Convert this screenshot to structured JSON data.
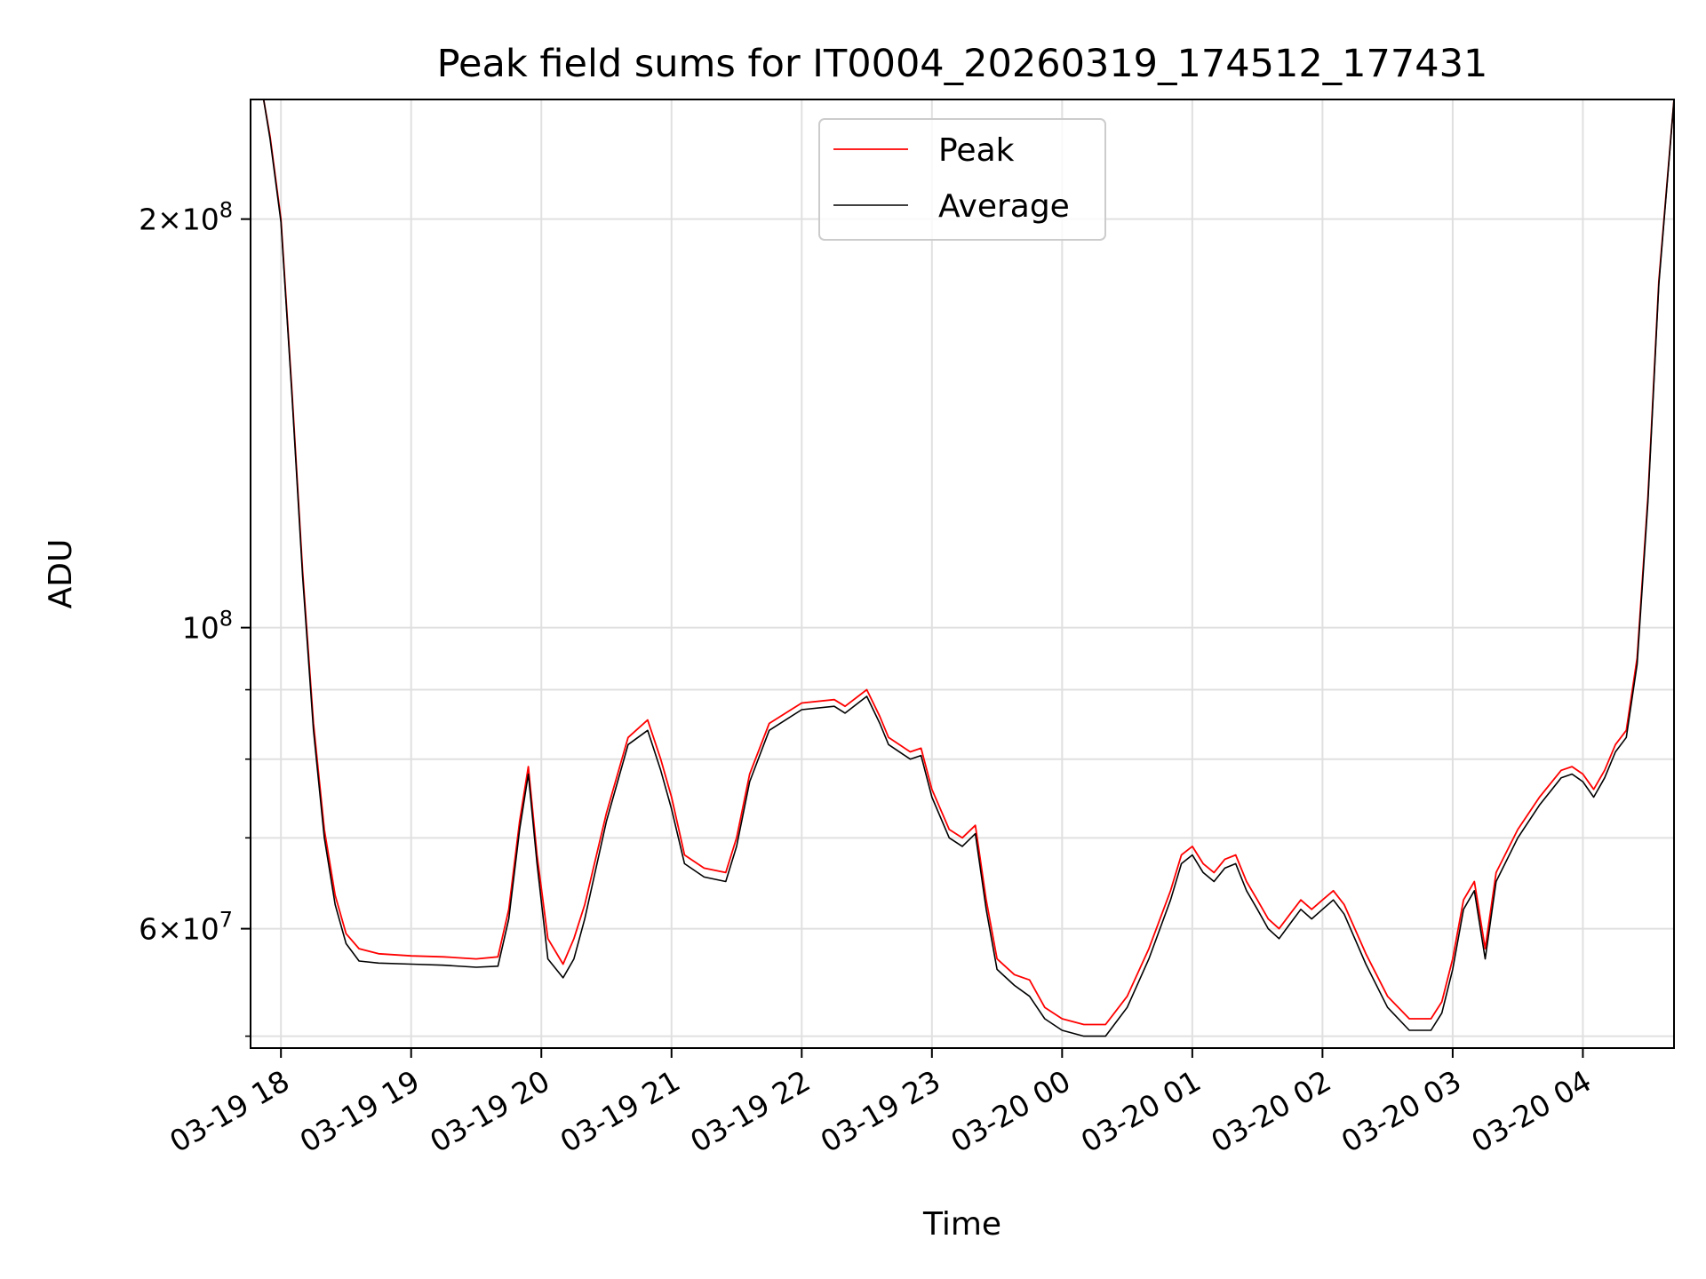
{
  "chart_data": {
    "type": "line",
    "title": "Peak field sums for IT0004_20260319_174512_177431",
    "xlabel": "Time",
    "ylabel": "ADU",
    "yscale": "log",
    "ylim": [
      49000000,
      245000000
    ],
    "xlim": [
      "2026-03-19 17:46",
      "2026-03-20 04:42"
    ],
    "grid": true,
    "legend_position": "upper center",
    "x_ticks": [
      {
        "value": "2026-03-19 18:00",
        "label": "03-19 18"
      },
      {
        "value": "2026-03-19 19:00",
        "label": "03-19 19"
      },
      {
        "value": "2026-03-19 20:00",
        "label": "03-19 20"
      },
      {
        "value": "2026-03-19 21:00",
        "label": "03-19 21"
      },
      {
        "value": "2026-03-19 22:00",
        "label": "03-19 22"
      },
      {
        "value": "2026-03-19 23:00",
        "label": "03-19 23"
      },
      {
        "value": "2026-03-20 00:00",
        "label": "03-20 00"
      },
      {
        "value": "2026-03-20 01:00",
        "label": "03-20 01"
      },
      {
        "value": "2026-03-20 02:00",
        "label": "03-20 02"
      },
      {
        "value": "2026-03-20 03:00",
        "label": "03-20 03"
      },
      {
        "value": "2026-03-20 04:00",
        "label": "03-20 04"
      }
    ],
    "y_ticks_major": [
      {
        "value": 200000000,
        "base": "2×10",
        "exp": "8"
      },
      {
        "value": 100000000,
        "base": "10",
        "exp": "8"
      },
      {
        "value": 60000000,
        "base": "6×10",
        "exp": "7"
      }
    ],
    "y_ticks_minor": [
      50000000,
      70000000,
      80000000,
      90000000
    ],
    "series": [
      {
        "name": "Peak",
        "color": "#ff0000",
        "x": [
          "2026-03-19 17:46",
          "2026-03-19 17:52",
          "2026-03-19 17:55",
          "2026-03-19 18:00",
          "2026-03-19 18:05",
          "2026-03-19 18:10",
          "2026-03-19 18:15",
          "2026-03-19 18:20",
          "2026-03-19 18:25",
          "2026-03-19 18:30",
          "2026-03-19 18:36",
          "2026-03-19 18:45",
          "2026-03-19 19:00",
          "2026-03-19 19:15",
          "2026-03-19 19:30",
          "2026-03-19 19:40",
          "2026-03-19 19:45",
          "2026-03-19 19:50",
          "2026-03-19 19:54",
          "2026-03-19 19:58",
          "2026-03-19 20:03",
          "2026-03-19 20:10",
          "2026-03-19 20:15",
          "2026-03-19 20:20",
          "2026-03-19 20:30",
          "2026-03-19 20:40",
          "2026-03-19 20:49",
          "2026-03-19 20:55",
          "2026-03-19 21:00",
          "2026-03-19 21:06",
          "2026-03-19 21:15",
          "2026-03-19 21:25",
          "2026-03-19 21:30",
          "2026-03-19 21:36",
          "2026-03-19 21:45",
          "2026-03-19 22:00",
          "2026-03-19 22:15",
          "2026-03-19 22:20",
          "2026-03-19 22:30",
          "2026-03-19 22:36",
          "2026-03-19 22:40",
          "2026-03-19 22:50",
          "2026-03-19 22:55",
          "2026-03-19 23:00",
          "2026-03-19 23:08",
          "2026-03-19 23:14",
          "2026-03-19 23:20",
          "2026-03-19 23:25",
          "2026-03-19 23:30",
          "2026-03-19 23:38",
          "2026-03-19 23:45",
          "2026-03-19 23:52",
          "2026-03-20 00:00",
          "2026-03-20 00:10",
          "2026-03-20 00:20",
          "2026-03-20 00:30",
          "2026-03-20 00:40",
          "2026-03-20 00:50",
          "2026-03-20 00:55",
          "2026-03-20 01:00",
          "2026-03-20 01:05",
          "2026-03-20 01:10",
          "2026-03-20 01:15",
          "2026-03-20 01:20",
          "2026-03-20 01:25",
          "2026-03-20 01:30",
          "2026-03-20 01:35",
          "2026-03-20 01:40",
          "2026-03-20 01:45",
          "2026-03-20 01:50",
          "2026-03-20 01:55",
          "2026-03-20 02:00",
          "2026-03-20 02:05",
          "2026-03-20 02:10",
          "2026-03-20 02:20",
          "2026-03-20 02:30",
          "2026-03-20 02:40",
          "2026-03-20 02:50",
          "2026-03-20 02:55",
          "2026-03-20 03:00",
          "2026-03-20 03:05",
          "2026-03-20 03:10",
          "2026-03-20 03:15",
          "2026-03-20 03:20",
          "2026-03-20 03:30",
          "2026-03-20 03:40",
          "2026-03-20 03:50",
          "2026-03-20 03:55",
          "2026-03-20 04:00",
          "2026-03-20 04:05",
          "2026-03-20 04:10",
          "2026-03-20 04:15",
          "2026-03-20 04:20",
          "2026-03-20 04:25",
          "2026-03-20 04:30",
          "2026-03-20 04:35",
          "2026-03-20 04:42"
        ],
        "y": [
          245000000,
          245000000,
          230000000,
          200000000,
          150000000,
          110000000,
          85000000,
          71000000,
          63500000,
          59500000,
          58000000,
          57500000,
          57300000,
          57200000,
          57000000,
          57200000,
          62000000,
          72000000,
          79000000,
          68000000,
          59000000,
          56500000,
          59000000,
          62500000,
          73000000,
          83000000,
          85500000,
          80000000,
          75000000,
          68000000,
          66500000,
          66000000,
          70000000,
          78000000,
          85000000,
          88000000,
          88500000,
          87500000,
          90000000,
          86000000,
          83000000,
          81000000,
          81500000,
          76000000,
          71000000,
          70000000,
          71500000,
          63000000,
          57000000,
          55500000,
          55000000,
          52500000,
          51500000,
          51000000,
          51000000,
          53500000,
          58000000,
          64000000,
          68000000,
          69000000,
          67000000,
          66000000,
          67500000,
          68000000,
          65000000,
          63000000,
          61000000,
          60000000,
          61500000,
          63000000,
          62000000,
          63000000,
          64000000,
          62500000,
          57500000,
          53500000,
          51500000,
          51500000,
          53000000,
          57000000,
          63000000,
          65000000,
          58000000,
          66000000,
          71000000,
          75000000,
          78500000,
          79000000,
          78000000,
          76000000,
          78500000,
          82000000,
          84000000,
          95000000,
          125000000,
          180000000,
          245000000
        ]
      },
      {
        "name": "Average",
        "color": "#000000",
        "x": [
          "2026-03-19 17:46",
          "2026-03-19 17:52",
          "2026-03-19 17:55",
          "2026-03-19 18:00",
          "2026-03-19 18:05",
          "2026-03-19 18:10",
          "2026-03-19 18:15",
          "2026-03-19 18:20",
          "2026-03-19 18:25",
          "2026-03-19 18:30",
          "2026-03-19 18:36",
          "2026-03-19 18:45",
          "2026-03-19 19:00",
          "2026-03-19 19:15",
          "2026-03-19 19:30",
          "2026-03-19 19:40",
          "2026-03-19 19:45",
          "2026-03-19 19:50",
          "2026-03-19 19:54",
          "2026-03-19 19:58",
          "2026-03-19 20:03",
          "2026-03-19 20:10",
          "2026-03-19 20:15",
          "2026-03-19 20:20",
          "2026-03-19 20:30",
          "2026-03-19 20:40",
          "2026-03-19 20:49",
          "2026-03-19 20:55",
          "2026-03-19 21:00",
          "2026-03-19 21:06",
          "2026-03-19 21:15",
          "2026-03-19 21:25",
          "2026-03-19 21:30",
          "2026-03-19 21:36",
          "2026-03-19 21:45",
          "2026-03-19 22:00",
          "2026-03-19 22:15",
          "2026-03-19 22:20",
          "2026-03-19 22:30",
          "2026-03-19 22:36",
          "2026-03-19 22:40",
          "2026-03-19 22:50",
          "2026-03-19 22:55",
          "2026-03-19 23:00",
          "2026-03-19 23:08",
          "2026-03-19 23:14",
          "2026-03-19 23:20",
          "2026-03-19 23:25",
          "2026-03-19 23:30",
          "2026-03-19 23:38",
          "2026-03-19 23:45",
          "2026-03-19 23:52",
          "2026-03-20 00:00",
          "2026-03-20 00:10",
          "2026-03-20 00:20",
          "2026-03-20 00:30",
          "2026-03-20 00:40",
          "2026-03-20 00:50",
          "2026-03-20 00:55",
          "2026-03-20 01:00",
          "2026-03-20 01:05",
          "2026-03-20 01:10",
          "2026-03-20 01:15",
          "2026-03-20 01:20",
          "2026-03-20 01:25",
          "2026-03-20 01:30",
          "2026-03-20 01:35",
          "2026-03-20 01:40",
          "2026-03-20 01:45",
          "2026-03-20 01:50",
          "2026-03-20 01:55",
          "2026-03-20 02:00",
          "2026-03-20 02:05",
          "2026-03-20 02:10",
          "2026-03-20 02:20",
          "2026-03-20 02:30",
          "2026-03-20 02:40",
          "2026-03-20 02:50",
          "2026-03-20 02:55",
          "2026-03-20 03:00",
          "2026-03-20 03:05",
          "2026-03-20 03:10",
          "2026-03-20 03:15",
          "2026-03-20 03:20",
          "2026-03-20 03:30",
          "2026-03-20 03:40",
          "2026-03-20 03:50",
          "2026-03-20 03:55",
          "2026-03-20 04:00",
          "2026-03-20 04:05",
          "2026-03-20 04:10",
          "2026-03-20 04:15",
          "2026-03-20 04:20",
          "2026-03-20 04:25",
          "2026-03-20 04:30",
          "2026-03-20 04:35",
          "2026-03-20 04:42"
        ],
        "y": [
          245000000,
          245000000,
          229000000,
          199000000,
          149000000,
          109000000,
          84000000,
          70000000,
          62500000,
          58500000,
          56800000,
          56600000,
          56500000,
          56400000,
          56200000,
          56300000,
          61000000,
          71000000,
          78000000,
          67000000,
          57000000,
          55200000,
          57000000,
          61000000,
          72000000,
          82000000,
          84000000,
          78500000,
          73500000,
          67000000,
          65500000,
          65000000,
          69000000,
          77000000,
          84000000,
          87000000,
          87500000,
          86500000,
          89000000,
          85000000,
          82000000,
          80000000,
          80500000,
          75000000,
          70000000,
          69000000,
          70500000,
          62000000,
          56000000,
          54500000,
          53500000,
          51500000,
          50500000,
          50000000,
          50000000,
          52500000,
          57000000,
          63000000,
          67000000,
          68000000,
          66000000,
          65000000,
          66500000,
          67000000,
          64000000,
          62000000,
          60000000,
          59000000,
          60500000,
          62000000,
          61000000,
          62000000,
          63000000,
          61500000,
          56500000,
          52500000,
          50500000,
          50500000,
          52000000,
          56000000,
          62000000,
          64000000,
          57000000,
          65000000,
          70000000,
          74000000,
          77500000,
          78000000,
          77000000,
          75000000,
          77500000,
          81000000,
          83000000,
          94000000,
          124000000,
          179000000,
          245000000
        ]
      }
    ]
  }
}
